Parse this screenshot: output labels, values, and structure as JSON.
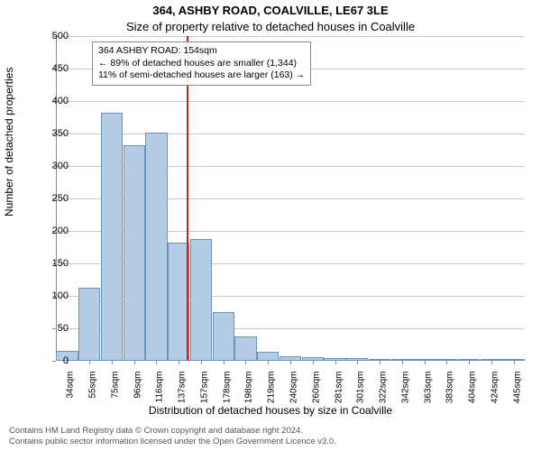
{
  "title_line1": "364, ASHBY ROAD, COALVILLE, LE67 3LE",
  "title_line2": "Size of property relative to detached houses in Coalville",
  "ylabel": "Number of detached properties",
  "xlabel": "Distribution of detached houses by size in Coalville",
  "footer_line1": "Contains HM Land Registry data © Crown copyright and database right 2024.",
  "footer_line2": "Contains public sector information licensed under the Open Government Licence v3.0.",
  "chart": {
    "type": "histogram",
    "ylim": [
      0,
      500
    ],
    "ytick_step": 50,
    "background_color": "#ffffff",
    "grid_color": "#c8c8c8",
    "bar_fill": "#b5cde4",
    "bar_stroke": "#6a93bd",
    "vline_color": "#d62020",
    "font_color": "#000000",
    "categories": [
      "34sqm",
      "55sqm",
      "75sqm",
      "96sqm",
      "116sqm",
      "137sqm",
      "157sqm",
      "178sqm",
      "198sqm",
      "219sqm",
      "240sqm",
      "260sqm",
      "281sqm",
      "301sqm",
      "322sqm",
      "342sqm",
      "363sqm",
      "383sqm",
      "404sqm",
      "424sqm",
      "445sqm"
    ],
    "values": [
      15,
      113,
      382,
      332,
      352,
      182,
      188,
      75,
      37,
      14,
      7,
      6,
      4,
      4,
      2,
      2,
      1,
      1,
      1,
      1,
      1
    ],
    "vline_at_index": 6,
    "vline_value_sqm": 154,
    "title_fontsize": 13,
    "label_fontsize": 12,
    "tick_fontsize": 11,
    "xtick_fontsize": 10
  },
  "annotation": {
    "line1": "364 ASHBY ROAD: 154sqm",
    "line2": "← 89% of detached houses are smaller (1,344)",
    "line3": "11% of semi-detached houses are larger (163) →"
  }
}
